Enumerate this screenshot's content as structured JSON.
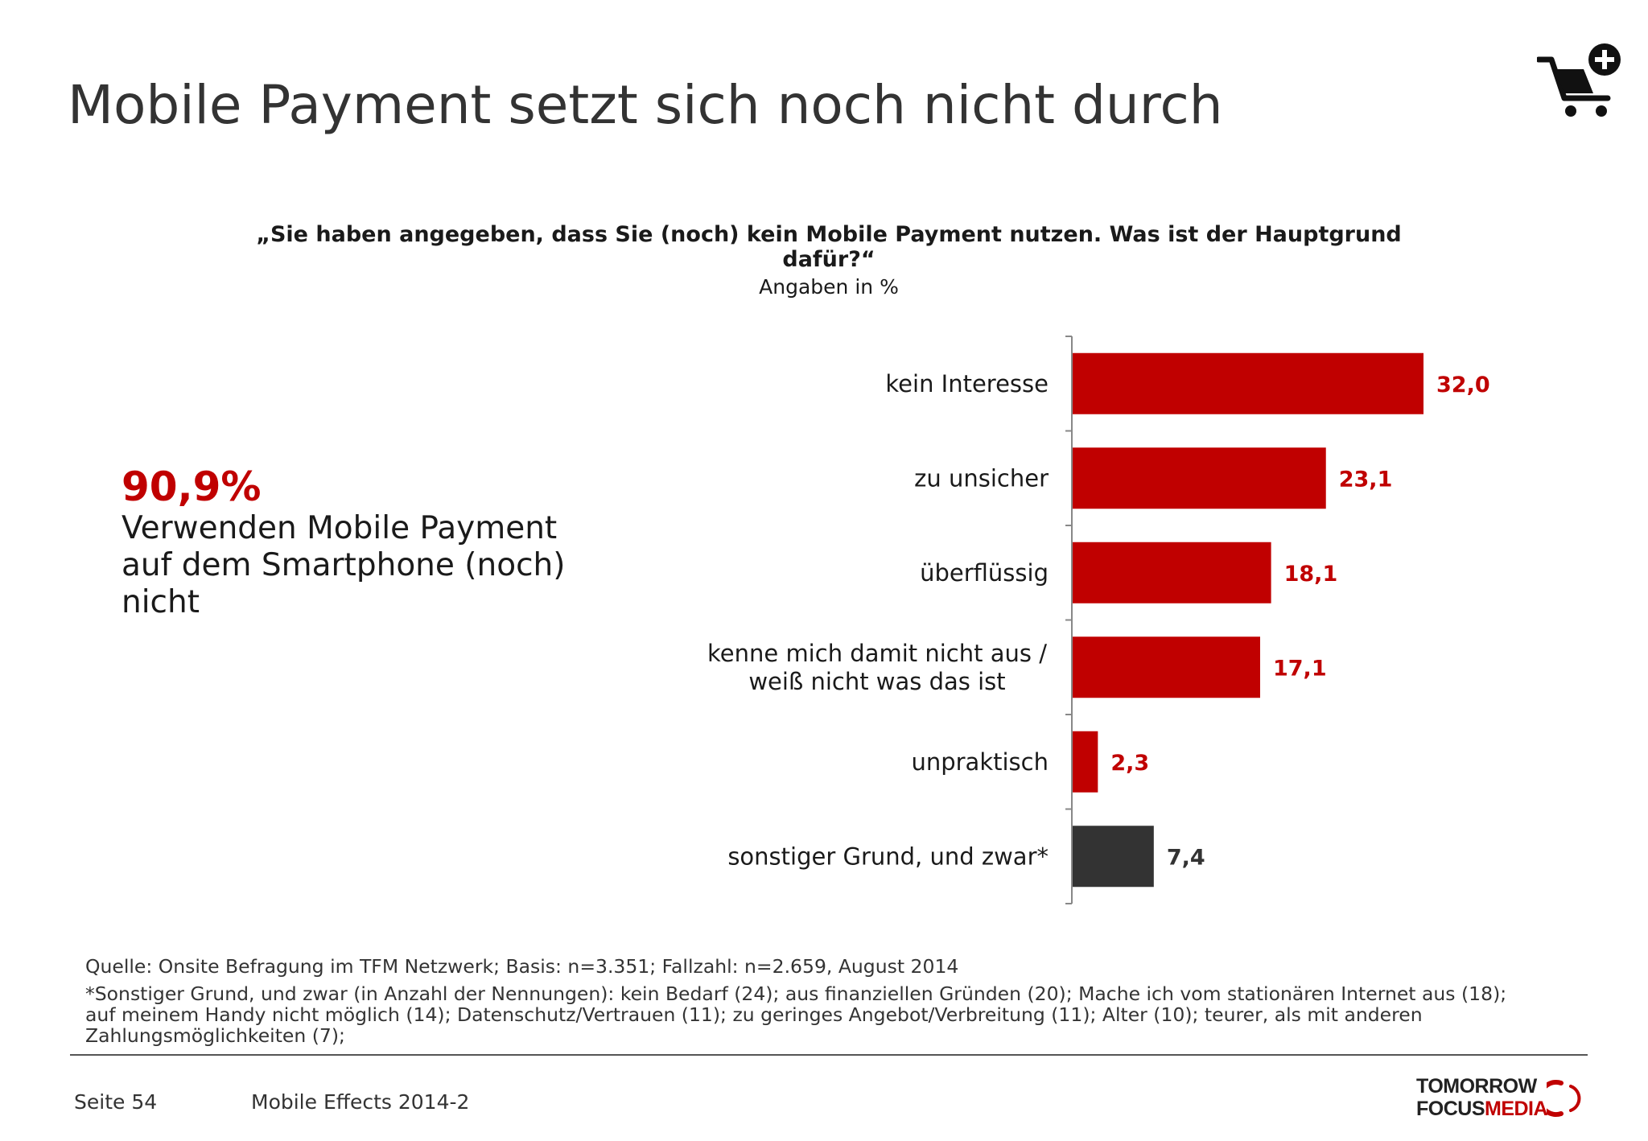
{
  "header": {
    "title": "Mobile Payment setzt sich noch nicht durch"
  },
  "icons": {
    "cart": "shopping-cart-plus-icon"
  },
  "question": {
    "line1": "„Sie haben angegeben, dass Sie (noch) kein Mobile Payment nutzen. Was ist der Hauptgrund",
    "line2": "dafür?“",
    "unit": "Angaben in %"
  },
  "highlight": {
    "value": "90,9%",
    "line1": "Verwenden Mobile Payment",
    "line2": "auf dem Smartphone (noch)",
    "line3": "nicht"
  },
  "chart_data": {
    "type": "bar",
    "orientation": "horizontal",
    "categories": [
      [
        "kein Interesse"
      ],
      [
        "zu unsicher"
      ],
      [
        "überflüssig"
      ],
      [
        "kenne mich damit nicht aus /",
        "weiß nicht was das ist"
      ],
      [
        "unpraktisch"
      ],
      [
        "sonstiger Grund, und zwar*"
      ]
    ],
    "values": [
      32.0,
      23.1,
      18.1,
      17.1,
      2.3,
      7.4
    ],
    "value_labels": [
      "32,0",
      "23,1",
      "18,1",
      "17,1",
      "2,3",
      "7,4"
    ],
    "colors": [
      "#c00000",
      "#c00000",
      "#c00000",
      "#c00000",
      "#c00000",
      "#333333"
    ],
    "xlim": [
      0,
      35
    ],
    "title": "",
    "xlabel": "",
    "ylabel": "",
    "grid": false
  },
  "footer": {
    "source": "Quelle: Onsite Befragung im TFM Netzwerk; Basis: n=3.351; Fallzahl: n=2.659, August 2014",
    "footnote_line1": "*Sonstiger Grund, und zwar (in Anzahl der Nennungen): kein Bedarf (24); aus finanziellen Gründen (20); Mache ich vom stationären Internet aus (18);",
    "footnote_line2": "auf meinem Handy nicht möglich (14); Datenschutz/Vertrauen (11); zu geringes Angebot/Verbreitung (11); Alter (10); teurer, als mit anderen",
    "footnote_line3": "Zahlungsmöglichkeiten (7);",
    "page": "Seite 54",
    "report": "Mobile Effects 2014-2"
  },
  "logo": {
    "line1": "TOMORROW",
    "line2a": "FOCUS",
    "line2b": "MEDIA",
    "accent": "#c00000"
  }
}
